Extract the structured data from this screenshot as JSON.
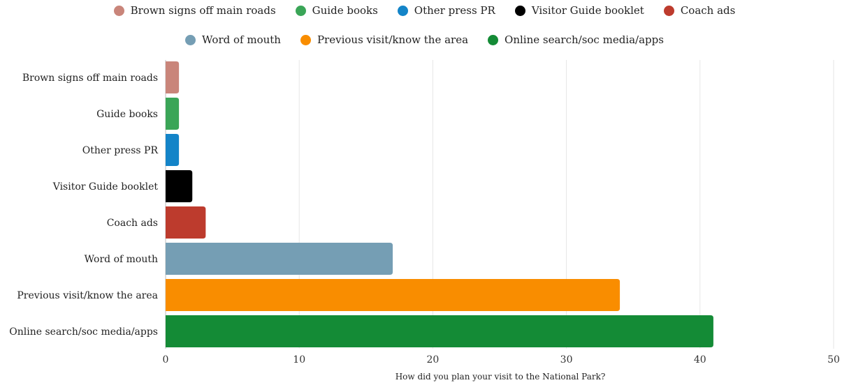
{
  "chart_data": {
    "type": "bar",
    "orientation": "horizontal",
    "categories": [
      "Brown signs off main roads",
      "Guide books",
      "Other press PR",
      "Visitor Guide booklet",
      "Coach ads",
      "Word of mouth",
      "Previous visit/know the area",
      "Online search/soc media/apps"
    ],
    "values": [
      1,
      1,
      1,
      2,
      3,
      17,
      34,
      41
    ],
    "colors": [
      "#c9857a",
      "#3aa557",
      "#1384c8",
      "#000000",
      "#bd3b2d",
      "#759eb4",
      "#f98d00",
      "#148b36"
    ],
    "xlabel": "How did you plan your visit to the National Park?",
    "ylabel": "",
    "xlim": [
      0,
      50
    ],
    "xticks": [
      "0",
      "10",
      "20",
      "30",
      "40",
      "50"
    ],
    "grid": true,
    "legend": {
      "placement": "top",
      "rows": [
        [
          "Brown signs off main roads",
          "Guide books",
          "Other press PR",
          "Visitor Guide booklet",
          "Coach ads"
        ],
        [
          "Word of mouth",
          "Previous visit/know the area",
          "Online search/soc media/apps"
        ]
      ]
    }
  }
}
